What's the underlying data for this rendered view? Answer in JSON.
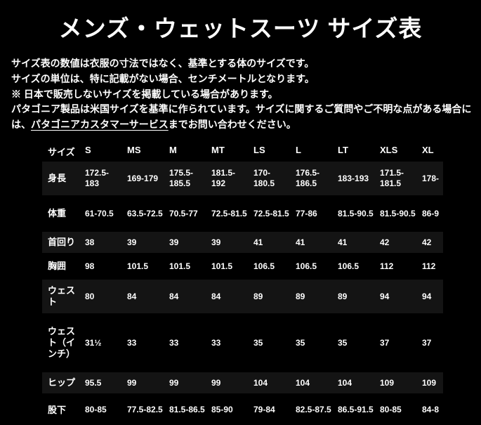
{
  "page": {
    "title": "メンズ・ウェットスーツ サイズ表",
    "background_color": "#000000",
    "text_color": "#ffffff",
    "stripe_color": "#141414"
  },
  "notes": {
    "items": [
      {
        "text": "サイズ表の数値は衣服の寸法ではなく、基準とする体のサイズです。"
      },
      {
        "text": "サイズの単位は、特に記載がない場合、センチメートルとなります。"
      },
      {
        "text": "※ 日本で販売しないサイズを掲載している場合があります。"
      },
      {
        "line1": "パタゴニア製品は米国サイズを基準に作られています。サイズに関するご質問やご不明な点がある場合に",
        "line2_pre": "は、",
        "link_label": "パタゴニアカスタマーサービス",
        "line2_post": "までお問い合わせください。"
      }
    ]
  },
  "size_table": {
    "header": [
      "サイズ",
      "S",
      "MS",
      "M",
      "MT",
      "LS",
      "L",
      "LT",
      "XLS",
      "XL"
    ],
    "rows": [
      {
        "label": "身長",
        "values": [
          "172.5-183",
          "169-179",
          "175.5-185.5",
          "181.5-192",
          "170-180.5",
          "176.5-186.5",
          "183-193",
          "171.5-181.5",
          "178-"
        ]
      },
      {
        "label": "体重",
        "values": [
          "61-70.5",
          "63.5-72.5",
          "70.5-77",
          "72.5-81.5",
          "72.5-81.5",
          "77-86",
          "81.5-90.5",
          "81.5-90.5",
          "86-9"
        ]
      },
      {
        "label": "首回り",
        "values": [
          "38",
          "39",
          "39",
          "39",
          "41",
          "41",
          "41",
          "42",
          "42"
        ]
      },
      {
        "label": "胸囲",
        "values": [
          "98",
          "101.5",
          "101.5",
          "101.5",
          "106.5",
          "106.5",
          "106.5",
          "112",
          "112"
        ]
      },
      {
        "label": "ウェスト",
        "values": [
          "80",
          "84",
          "84",
          "84",
          "89",
          "89",
          "89",
          "94",
          "94"
        ]
      },
      {
        "label": "ウェスト（インチ）",
        "values": [
          "31½",
          "33",
          "33",
          "33",
          "35",
          "35",
          "35",
          "37",
          "37"
        ]
      },
      {
        "label": "ヒップ",
        "values": [
          "95.5",
          "99",
          "99",
          "99",
          "104",
          "104",
          "104",
          "109",
          "109"
        ]
      },
      {
        "label": "股下",
        "values": [
          "80-85",
          "77.5-82.5",
          "81.5-86.5",
          "85-90",
          "79-84",
          "82.5-87.5",
          "86.5-91.5",
          "80-85",
          "84-8"
        ]
      }
    ]
  }
}
